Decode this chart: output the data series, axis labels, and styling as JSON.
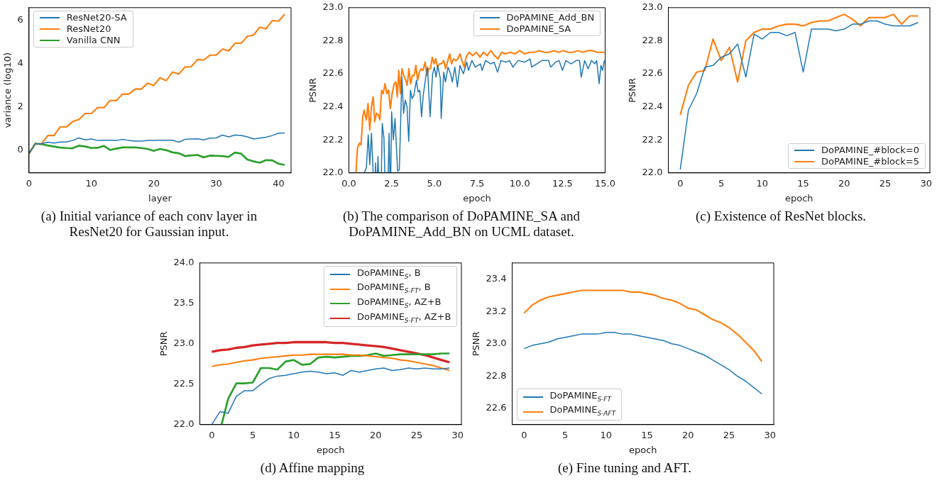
{
  "chart_data": [
    {
      "type": "line",
      "xlabel": "layer",
      "ylabel": "variance (log10)",
      "x": [
        0,
        1,
        2,
        3,
        4,
        5,
        6,
        7,
        8,
        9,
        10,
        11,
        12,
        13,
        14,
        15,
        16,
        17,
        18,
        19,
        20,
        21,
        22,
        23,
        24,
        25,
        26,
        27,
        28,
        29,
        30,
        31,
        32,
        33,
        34,
        35,
        36,
        37,
        38,
        39,
        40,
        41
      ],
      "xlim": [
        0,
        42
      ],
      "xticks": [
        0,
        10,
        20,
        30,
        40
      ],
      "ylim": [
        -1.05,
        6.6
      ],
      "yticks": [
        0,
        2,
        4,
        6
      ],
      "grid": false,
      "legend": "top left",
      "series": [
        {
          "name": "ResNet20-SA",
          "color": "#1f77b4",
          "values": [
            -0.15,
            0.3,
            0.3,
            0.37,
            0.33,
            0.38,
            0.38,
            0.45,
            0.57,
            0.48,
            0.52,
            0.45,
            0.46,
            0.46,
            0.45,
            0.5,
            0.45,
            0.42,
            0.42,
            0.45,
            0.45,
            0.46,
            0.46,
            0.46,
            0.37,
            0.5,
            0.52,
            0.53,
            0.48,
            0.56,
            0.57,
            0.7,
            0.62,
            0.7,
            0.68,
            0.62,
            0.52,
            0.56,
            0.6,
            0.68,
            0.79,
            0.8
          ]
        },
        {
          "name": "ResNet20",
          "color": "#ff7f0e",
          "values": [
            -0.15,
            0.3,
            0.3,
            0.68,
            0.68,
            1.08,
            1.08,
            1.32,
            1.42,
            1.7,
            1.7,
            1.97,
            1.97,
            2.3,
            2.3,
            2.6,
            2.6,
            2.83,
            2.83,
            3.1,
            3.0,
            3.35,
            3.22,
            3.62,
            3.52,
            3.85,
            3.87,
            4.2,
            4.18,
            4.4,
            4.4,
            4.68,
            4.6,
            4.95,
            4.95,
            5.27,
            5.33,
            5.7,
            5.62,
            6.0,
            5.98,
            6.3
          ]
        },
        {
          "name": "Vanilla CNN",
          "color": "#2ca02c",
          "values": [
            -0.15,
            0.3,
            0.28,
            0.22,
            0.17,
            0.12,
            0.1,
            0.09,
            0.21,
            0.17,
            0.1,
            0.11,
            0.2,
            0.01,
            0.07,
            0.13,
            0.13,
            0.13,
            0.1,
            0.06,
            -0.03,
            0.06,
            0,
            -0.1,
            -0.14,
            -0.27,
            -0.24,
            -0.22,
            -0.33,
            -0.25,
            -0.26,
            -0.27,
            -0.31,
            -0.11,
            -0.16,
            -0.43,
            -0.52,
            -0.58,
            -0.46,
            -0.47,
            -0.63,
            -0.68
          ]
        }
      ],
      "annotations": [
        "(a) Initial variance of each conv layer in ResNet20 for Gaussian input."
      ]
    },
    {
      "type": "line",
      "xlabel": "epoch",
      "ylabel": "PSNR",
      "xlim": [
        0,
        15
      ],
      "xticks": [
        {
          "value": 0,
          "label": "0.0"
        },
        2.5,
        {
          "value": 5,
          "label": "5.0"
        },
        7.5,
        {
          "value": 10,
          "label": "10.0"
        },
        12.5,
        {
          "value": 15,
          "label": "15.0"
        }
      ],
      "ylim": [
        22,
        23
      ],
      "yticks": [
        {
          "value": 22,
          "label": "22.0"
        },
        22.2,
        22.4,
        22.6,
        22.8,
        {
          "value": 23,
          "label": "23.0"
        }
      ],
      "grid": false,
      "legend": "top right",
      "series": [
        {
          "name": "DoPAMINE_Add_BN",
          "color": "#1f77b4",
          "x": [
            0.9,
            1.02,
            1.13,
            1.22,
            1.32,
            1.42,
            1.47,
            1.52,
            1.55,
            1.58,
            1.62,
            1.67,
            1.7,
            1.73,
            1.8,
            1.9,
            1.95,
            2.05,
            2.1,
            2.2,
            2.3,
            2.35,
            2.4,
            2.42,
            2.45,
            2.5,
            2.6,
            2.7,
            2.85,
            2.95,
            3.1,
            3.2,
            3.3,
            3.4,
            3.5,
            3.6,
            3.7,
            3.8,
            3.95,
            4.05,
            4.15,
            4.25,
            4.35,
            4.5,
            4.6,
            4.75,
            4.9,
            5.0,
            5.1,
            5.2,
            5.35,
            5.4,
            5.55,
            5.65,
            5.8,
            5.95,
            6.05,
            6.2,
            6.35,
            6.5,
            6.7,
            6.9,
            7.0,
            7.2,
            7.4,
            7.7,
            7.8,
            8.0,
            8.3,
            8.5,
            8.7,
            8.9,
            9.2,
            9.4,
            9.6,
            9.9,
            10.3,
            10.6,
            10.7,
            11.0,
            11.3,
            11.7,
            11.8,
            12.1,
            12.3,
            12.5,
            12.7,
            13.0,
            13.3,
            13.5,
            13.6,
            13.8,
            14.0,
            14.2,
            14.4,
            14.5,
            14.65,
            14.75,
            14.85,
            14.95
          ],
          "values": [
            22.0,
            22.03,
            22.23,
            22.05,
            22.24,
            22.0,
            null,
            22.0,
            22.06,
            22.0,
            null,
            22.0,
            22.1,
            22.0,
            null,
            22.0,
            22.3,
            22.21,
            22.0,
            null,
            22.0,
            22.24,
            22.0,
            null,
            22.0,
            22.37,
            22.2,
            22.33,
            22.01,
            22.02,
            22.58,
            22.36,
            22.44,
            22.4,
            22.19,
            22.5,
            22.45,
            22.47,
            22.56,
            22.49,
            22.5,
            22.34,
            22.47,
            22.58,
            22.64,
            22.34,
            22.6,
            22.64,
            22.58,
            22.65,
            22.57,
            22.33,
            22.61,
            22.55,
            22.64,
            22.6,
            22.55,
            22.64,
            22.52,
            22.65,
            22.6,
            22.67,
            22.62,
            22.68,
            22.64,
            22.66,
            22.62,
            22.68,
            22.66,
            22.67,
            22.61,
            22.68,
            22.67,
            22.68,
            22.64,
            22.68,
            22.67,
            22.69,
            22.64,
            22.66,
            22.68,
            22.68,
            22.64,
            22.67,
            22.68,
            22.62,
            22.68,
            22.66,
            22.68,
            22.68,
            22.58,
            22.68,
            22.63,
            22.68,
            22.66,
            22.68,
            22.54,
            22.65,
            22.62,
            22.68
          ]
        },
        {
          "name": "DoPAMINE_SA",
          "color": "#ff7f0e",
          "x": [
            0.41,
            0.5,
            0.61,
            0.71,
            0.81,
            0.89,
            1.02,
            1.12,
            1.22,
            1.32,
            1.42,
            1.51,
            1.61,
            1.73,
            1.81,
            1.91,
            2.01,
            2.11,
            2.22,
            2.32,
            2.42,
            2.53,
            2.65,
            2.75,
            2.83,
            2.92,
            3.01,
            3.1,
            3.21,
            3.33,
            3.41,
            3.51,
            3.61,
            3.72,
            3.82,
            3.92,
            4.02,
            4.12,
            4.22,
            4.34,
            4.46,
            4.57,
            4.67,
            4.77,
            4.88,
            4.98,
            5.08,
            5.19,
            5.3,
            5.41,
            5.55,
            5.66,
            5.79,
            5.9,
            6.01,
            6.13,
            6.25,
            6.37,
            6.5,
            6.61,
            6.75,
            6.86,
            7.03,
            7.25,
            7.46,
            7.67,
            7.88,
            8.09,
            8.31,
            8.52,
            8.73,
            8.94,
            9.16,
            9.44,
            9.72,
            10.0,
            10.29,
            10.57,
            10.85,
            11.14,
            11.42,
            11.7,
            11.99,
            12.27,
            12.55,
            12.83,
            13.12,
            13.4,
            13.68,
            13.97,
            14.25,
            14.53,
            14.82,
            14.96
          ],
          "values": [
            22.0,
            22.15,
            22.18,
            22.17,
            22.34,
            22.38,
            22.32,
            22.42,
            22.26,
            22.4,
            22.46,
            22.31,
            22.36,
            22.35,
            22.32,
            22.5,
            22.48,
            22.54,
            22.48,
            22.5,
            22.39,
            22.48,
            22.54,
            22.55,
            22.46,
            22.62,
            22.48,
            22.63,
            22.59,
            22.56,
            22.53,
            22.63,
            22.54,
            22.59,
            22.59,
            22.65,
            22.56,
            22.61,
            22.63,
            22.62,
            22.67,
            22.59,
            22.63,
            22.63,
            22.7,
            22.66,
            22.69,
            22.64,
            22.66,
            22.66,
            22.68,
            22.63,
            22.68,
            22.72,
            22.66,
            22.69,
            22.68,
            22.69,
            22.72,
            22.68,
            22.64,
            22.7,
            22.73,
            22.71,
            22.73,
            22.7,
            22.73,
            22.71,
            22.74,
            22.71,
            22.69,
            22.73,
            22.72,
            22.73,
            22.72,
            22.74,
            22.72,
            22.73,
            22.73,
            22.74,
            22.73,
            22.73,
            22.74,
            22.73,
            22.74,
            22.73,
            22.73,
            22.74,
            22.73,
            22.74,
            22.74,
            22.73,
            22.73,
            22.73
          ]
        }
      ],
      "annotations": [
        "(b) The comparison of DoPAMINE_SA and DoPAMINE_Add_BN on UCML dataset."
      ]
    },
    {
      "type": "line",
      "xlabel": "epoch",
      "ylabel": "PSNR",
      "x": [
        0,
        1,
        2,
        3,
        4,
        5,
        6,
        7,
        8,
        9,
        10,
        11,
        12,
        13,
        14,
        15,
        16,
        17,
        18,
        19,
        20,
        21,
        22,
        23,
        24,
        25,
        26,
        27,
        28,
        29
      ],
      "xlim": [
        -1.45,
        30.45
      ],
      "xticks": [
        0,
        5,
        10,
        15,
        20,
        25,
        30
      ],
      "ylim": [
        22,
        23
      ],
      "yticks": [
        {
          "value": 22,
          "label": "22.0"
        },
        22.2,
        22.4,
        22.6,
        22.8,
        {
          "value": 23,
          "label": "23.0"
        }
      ],
      "grid": false,
      "legend": "bottom right",
      "series": [
        {
          "name": "DoPAMINE_#block=0",
          "color": "#1f77b4",
          "values": [
            22.02,
            22.38,
            22.48,
            22.64,
            22.65,
            22.7,
            22.72,
            22.78,
            22.58,
            22.84,
            22.81,
            22.85,
            22.85,
            22.83,
            22.85,
            22.61,
            22.87,
            22.87,
            22.87,
            22.86,
            22.87,
            22.9,
            22.9,
            22.92,
            22.92,
            22.9,
            22.89,
            22.89,
            22.89,
            22.91
          ]
        },
        {
          "name": "DoPAMINE_#block=5",
          "color": "#ff7f0e",
          "values": [
            22.35,
            22.53,
            22.61,
            22.62,
            22.81,
            22.68,
            22.76,
            22.55,
            22.8,
            22.85,
            22.87,
            22.87,
            22.89,
            22.9,
            22.9,
            22.89,
            22.91,
            22.92,
            22.92,
            22.94,
            22.96,
            22.93,
            22.89,
            22.94,
            22.94,
            22.94,
            22.96,
            22.9,
            22.95,
            22.95
          ]
        }
      ],
      "annotations": [
        "(c) Existence of ResNet blocks."
      ]
    },
    {
      "type": "line",
      "xlabel": "epoch",
      "ylabel": "PSNR",
      "x": [
        0,
        1,
        2,
        3,
        4,
        5,
        6,
        7,
        8,
        9,
        10,
        11,
        12,
        13,
        14,
        15,
        16,
        17,
        18,
        19,
        20,
        21,
        22,
        23,
        24,
        25,
        26,
        27,
        28,
        29
      ],
      "xlim": [
        -1.45,
        30.45
      ],
      "xticks": [
        0,
        5,
        10,
        15,
        20,
        25,
        30
      ],
      "ylim": [
        22,
        24
      ],
      "yticks": [
        {
          "value": 22,
          "label": "22.0"
        },
        22.5,
        {
          "value": 23,
          "label": "23.0"
        },
        23.5,
        {
          "value": 24,
          "label": "24.0"
        }
      ],
      "grid": false,
      "legend": "top right",
      "series": [
        {
          "name": "DoPAMINE$_{S}$, B",
          "color": "#1f77b4",
          "values": [
            22.0,
            22.16,
            22.14,
            22.35,
            22.42,
            22.42,
            22.5,
            22.57,
            22.6,
            22.61,
            22.63,
            22.65,
            22.66,
            22.65,
            22.63,
            22.64,
            22.61,
            22.67,
            22.65,
            22.67,
            22.69,
            22.7,
            22.67,
            22.68,
            22.7,
            22.69,
            22.7,
            22.69,
            22.69,
            22.7
          ]
        },
        {
          "name": "DoPAMINE$_{S-FT}$, B",
          "color": "#ff7f0e",
          "values": [
            22.72,
            22.74,
            22.75,
            22.77,
            22.79,
            22.8,
            22.82,
            22.83,
            22.84,
            22.85,
            22.86,
            22.86,
            22.87,
            22.87,
            22.87,
            22.87,
            22.87,
            22.86,
            22.86,
            22.85,
            22.84,
            22.83,
            22.82,
            22.8,
            22.79,
            22.77,
            22.75,
            22.73,
            22.7,
            22.67
          ]
        },
        {
          "name": "DoPAMINE$_{S}$, AZ+B",
          "color": "#2ca02c",
          "x": [
            1.2,
            2,
            3,
            4,
            5,
            6,
            7,
            8,
            9,
            10,
            11,
            12,
            13,
            14,
            15,
            16,
            17,
            18,
            19,
            20,
            21,
            22,
            23,
            24,
            25,
            26,
            27,
            28,
            29
          ],
          "values": [
            22.0,
            22.32,
            22.51,
            22.51,
            22.52,
            22.7,
            22.7,
            22.68,
            22.78,
            22.8,
            22.74,
            22.75,
            22.83,
            22.84,
            22.83,
            22.84,
            22.85,
            22.85,
            22.86,
            22.88,
            22.85,
            22.86,
            22.87,
            22.87,
            22.87,
            22.87,
            22.87,
            22.88,
            22.88
          ]
        },
        {
          "name": "DoPAMINE$_{S-FT}$, AZ+B",
          "color": "#d62728",
          "values": [
            22.9,
            22.92,
            22.93,
            22.95,
            22.96,
            22.98,
            22.99,
            23.0,
            23.01,
            23.01,
            23.02,
            23.02,
            23.02,
            23.02,
            23.02,
            23.01,
            23.01,
            23.0,
            22.99,
            22.98,
            22.97,
            22.96,
            22.94,
            22.92,
            22.9,
            22.88,
            22.86,
            22.83,
            22.8,
            22.77
          ]
        }
      ],
      "annotations": [
        "(d) Affine mapping"
      ]
    },
    {
      "type": "line",
      "xlabel": "epoch",
      "ylabel": "PSNR",
      "x": [
        0,
        1,
        2,
        3,
        4,
        5,
        6,
        7,
        8,
        9,
        10,
        11,
        12,
        13,
        14,
        15,
        16,
        17,
        18,
        19,
        20,
        21,
        22,
        23,
        24,
        25,
        26,
        27,
        28,
        29
      ],
      "xlim": [
        -1.45,
        30.45
      ],
      "xticks": [
        0,
        5,
        10,
        15,
        20,
        25,
        30
      ],
      "ylim": [
        22.5,
        23.5
      ],
      "yticks": [
        22.6,
        22.8,
        {
          "value": 23,
          "label": "23.0"
        },
        23.2,
        23.4
      ],
      "grid": false,
      "legend": "bottom left",
      "series": [
        {
          "name": "DoPAMINE$_{S-FT}$",
          "color": "#1f77b4",
          "values": [
            22.97,
            22.99,
            23.0,
            23.01,
            23.03,
            23.04,
            23.05,
            23.06,
            23.06,
            23.06,
            23.07,
            23.07,
            23.06,
            23.06,
            23.05,
            23.04,
            23.03,
            23.02,
            23.0,
            22.99,
            22.97,
            22.95,
            22.93,
            22.9,
            22.87,
            22.84,
            22.8,
            22.77,
            22.73,
            22.69
          ]
        },
        {
          "name": "DoPAMINE$_{S-AFT}$",
          "color": "#ff7f0e",
          "values": [
            23.19,
            23.24,
            23.27,
            23.29,
            23.3,
            23.31,
            23.32,
            23.33,
            23.33,
            23.33,
            23.33,
            23.33,
            23.33,
            23.32,
            23.32,
            23.31,
            23.3,
            23.28,
            23.27,
            23.25,
            23.22,
            23.21,
            23.18,
            23.15,
            23.13,
            23.1,
            23.06,
            23.01,
            22.96,
            22.89
          ]
        }
      ],
      "annotations": [
        "(e) Fine tuning and AFT."
      ]
    }
  ]
}
